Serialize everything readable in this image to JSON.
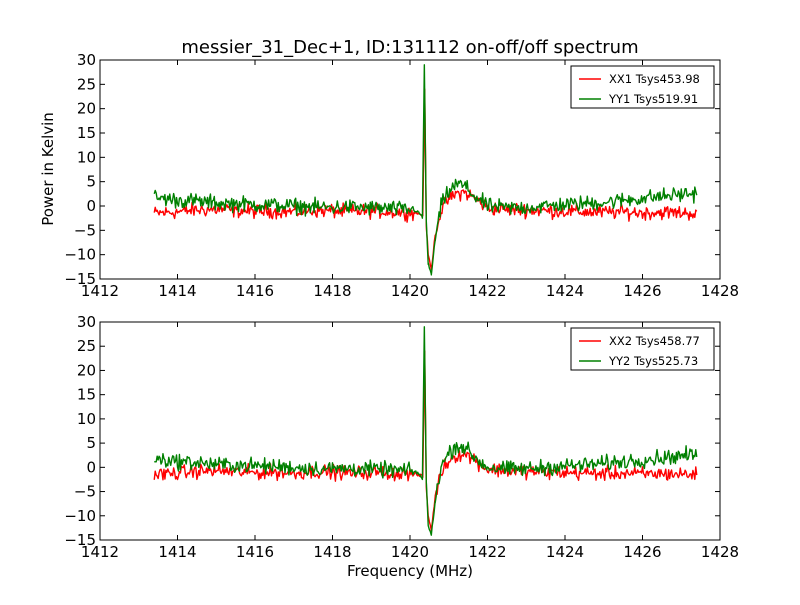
{
  "figure": {
    "title": "messier_31_Dec+1, ID:131112 on-off/off spectrum",
    "xlabel": "Frequency (MHz)",
    "ylabel": "Power in Kelvin"
  },
  "chart_data": [
    {
      "type": "line",
      "title": "messier_31_Dec+1, ID:131112 on-off/off spectrum",
      "xlabel": "",
      "ylabel": "Power in Kelvin",
      "xlim": [
        1412,
        1428
      ],
      "ylim": [
        -15,
        30
      ],
      "xticks": [
        "1412",
        "1414",
        "1416",
        "1418",
        "1420",
        "1422",
        "1424",
        "1426",
        "1428"
      ],
      "yticks": [
        "−15",
        "−10",
        "−5",
        "0",
        "5",
        "10",
        "15",
        "20",
        "25",
        "30"
      ],
      "grid": false,
      "legend_position": "top-right",
      "series": [
        {
          "name": "XX1 Tsys453.98",
          "color": "#ff0000",
          "x": [
            1413.4,
            1414.0,
            1414.5,
            1415.0,
            1415.5,
            1416.0,
            1416.5,
            1417.0,
            1417.5,
            1418.0,
            1418.5,
            1419.0,
            1419.5,
            1420.0,
            1420.2,
            1420.33,
            1420.38,
            1420.42,
            1420.47,
            1420.55,
            1420.65,
            1420.8,
            1421.0,
            1421.2,
            1421.4,
            1421.6,
            1421.8,
            1422.0,
            1422.5,
            1423.0,
            1423.5,
            1424.0,
            1424.5,
            1425.0,
            1425.5,
            1426.0,
            1426.5,
            1427.0,
            1427.4
          ],
          "y": [
            -1.5,
            -1.2,
            -0.8,
            -0.7,
            -0.9,
            -1.1,
            -1.0,
            -1.2,
            -0.9,
            -1.0,
            -1.2,
            -1.0,
            -1.2,
            -1.3,
            -1.5,
            -2.0,
            24.0,
            -4.0,
            -10.0,
            -13.0,
            -6.0,
            -1.0,
            1.5,
            2.5,
            2.8,
            2.0,
            0.8,
            -0.4,
            -0.7,
            -0.8,
            -1.0,
            -1.1,
            -1.2,
            -1.3,
            -1.2,
            -1.4,
            -1.3,
            -1.4,
            -1.5
          ]
        },
        {
          "name": "YY1 Tsys519.91",
          "color": "#008000",
          "x": [
            1413.4,
            1414.0,
            1414.5,
            1415.0,
            1415.5,
            1416.0,
            1416.5,
            1417.0,
            1417.5,
            1418.0,
            1418.5,
            1419.0,
            1419.5,
            1420.0,
            1420.2,
            1420.32,
            1420.37,
            1420.42,
            1420.47,
            1420.55,
            1420.65,
            1420.8,
            1421.0,
            1421.2,
            1421.4,
            1421.6,
            1421.8,
            1422.0,
            1422.5,
            1423.0,
            1423.5,
            1424.0,
            1424.5,
            1425.0,
            1425.5,
            1426.0,
            1426.5,
            1427.0,
            1427.4
          ],
          "y": [
            1.8,
            1.2,
            1.0,
            0.6,
            0.5,
            0.3,
            0.2,
            0.0,
            -0.2,
            -0.3,
            -0.2,
            -0.4,
            -0.5,
            -0.8,
            -1.0,
            -2.5,
            29.0,
            -3.0,
            -12.0,
            -14.0,
            -7.0,
            0.0,
            3.0,
            4.5,
            4.2,
            2.5,
            1.2,
            0.0,
            -0.4,
            -0.3,
            0.0,
            0.3,
            0.5,
            0.8,
            1.2,
            1.6,
            2.0,
            2.4,
            2.6
          ]
        }
      ]
    },
    {
      "type": "line",
      "title": "",
      "xlabel": "Frequency (MHz)",
      "ylabel": "",
      "xlim": [
        1412,
        1428
      ],
      "ylim": [
        -15,
        30
      ],
      "xticks": [
        "1412",
        "1414",
        "1416",
        "1418",
        "1420",
        "1422",
        "1424",
        "1426",
        "1428"
      ],
      "yticks": [
        "−15",
        "−10",
        "−5",
        "0",
        "5",
        "10",
        "15",
        "20",
        "25",
        "30"
      ],
      "grid": false,
      "legend_position": "top-right",
      "series": [
        {
          "name": "XX2 Tsys458.77",
          "color": "#ff0000",
          "x": [
            1413.4,
            1414.0,
            1414.5,
            1415.0,
            1415.5,
            1416.0,
            1416.5,
            1417.0,
            1417.5,
            1418.0,
            1418.5,
            1419.0,
            1419.5,
            1420.0,
            1420.2,
            1420.33,
            1420.38,
            1420.42,
            1420.47,
            1420.55,
            1420.65,
            1420.8,
            1421.0,
            1421.2,
            1421.4,
            1421.6,
            1421.8,
            1422.0,
            1422.5,
            1423.0,
            1423.5,
            1424.0,
            1424.5,
            1425.0,
            1425.5,
            1426.0,
            1426.5,
            1427.0,
            1427.4
          ],
          "y": [
            -1.5,
            -1.2,
            -0.8,
            -0.7,
            -0.9,
            -1.1,
            -1.0,
            -1.2,
            -0.9,
            -1.0,
            -1.2,
            -1.0,
            -1.2,
            -1.3,
            -1.5,
            -2.0,
            24.0,
            -4.0,
            -10.0,
            -13.0,
            -6.0,
            -1.0,
            1.5,
            2.5,
            2.8,
            2.0,
            0.8,
            -0.4,
            -0.7,
            -0.8,
            -1.0,
            -1.1,
            -1.2,
            -1.3,
            -1.2,
            -1.4,
            -1.3,
            -1.4,
            -1.5
          ]
        },
        {
          "name": "YY2 Tsys525.73",
          "color": "#008000",
          "x": [
            1413.4,
            1414.0,
            1414.5,
            1415.0,
            1415.5,
            1416.0,
            1416.5,
            1417.0,
            1417.5,
            1418.0,
            1418.5,
            1419.0,
            1419.5,
            1420.0,
            1420.2,
            1420.32,
            1420.37,
            1420.42,
            1420.47,
            1420.55,
            1420.65,
            1420.8,
            1421.0,
            1421.2,
            1421.4,
            1421.6,
            1421.8,
            1422.0,
            1422.5,
            1423.0,
            1423.5,
            1424.0,
            1424.5,
            1425.0,
            1425.5,
            1426.0,
            1426.5,
            1427.0,
            1427.4
          ],
          "y": [
            1.8,
            1.2,
            1.0,
            0.6,
            0.5,
            0.3,
            0.2,
            0.0,
            -0.2,
            -0.3,
            -0.2,
            -0.4,
            -0.5,
            -0.8,
            -1.0,
            -2.5,
            29.0,
            -3.0,
            -12.0,
            -14.0,
            -7.0,
            0.0,
            3.0,
            4.5,
            4.2,
            2.5,
            1.2,
            0.0,
            -0.4,
            -0.3,
            0.0,
            0.3,
            0.5,
            0.8,
            1.2,
            1.6,
            2.0,
            2.4,
            2.6
          ]
        }
      ]
    }
  ]
}
